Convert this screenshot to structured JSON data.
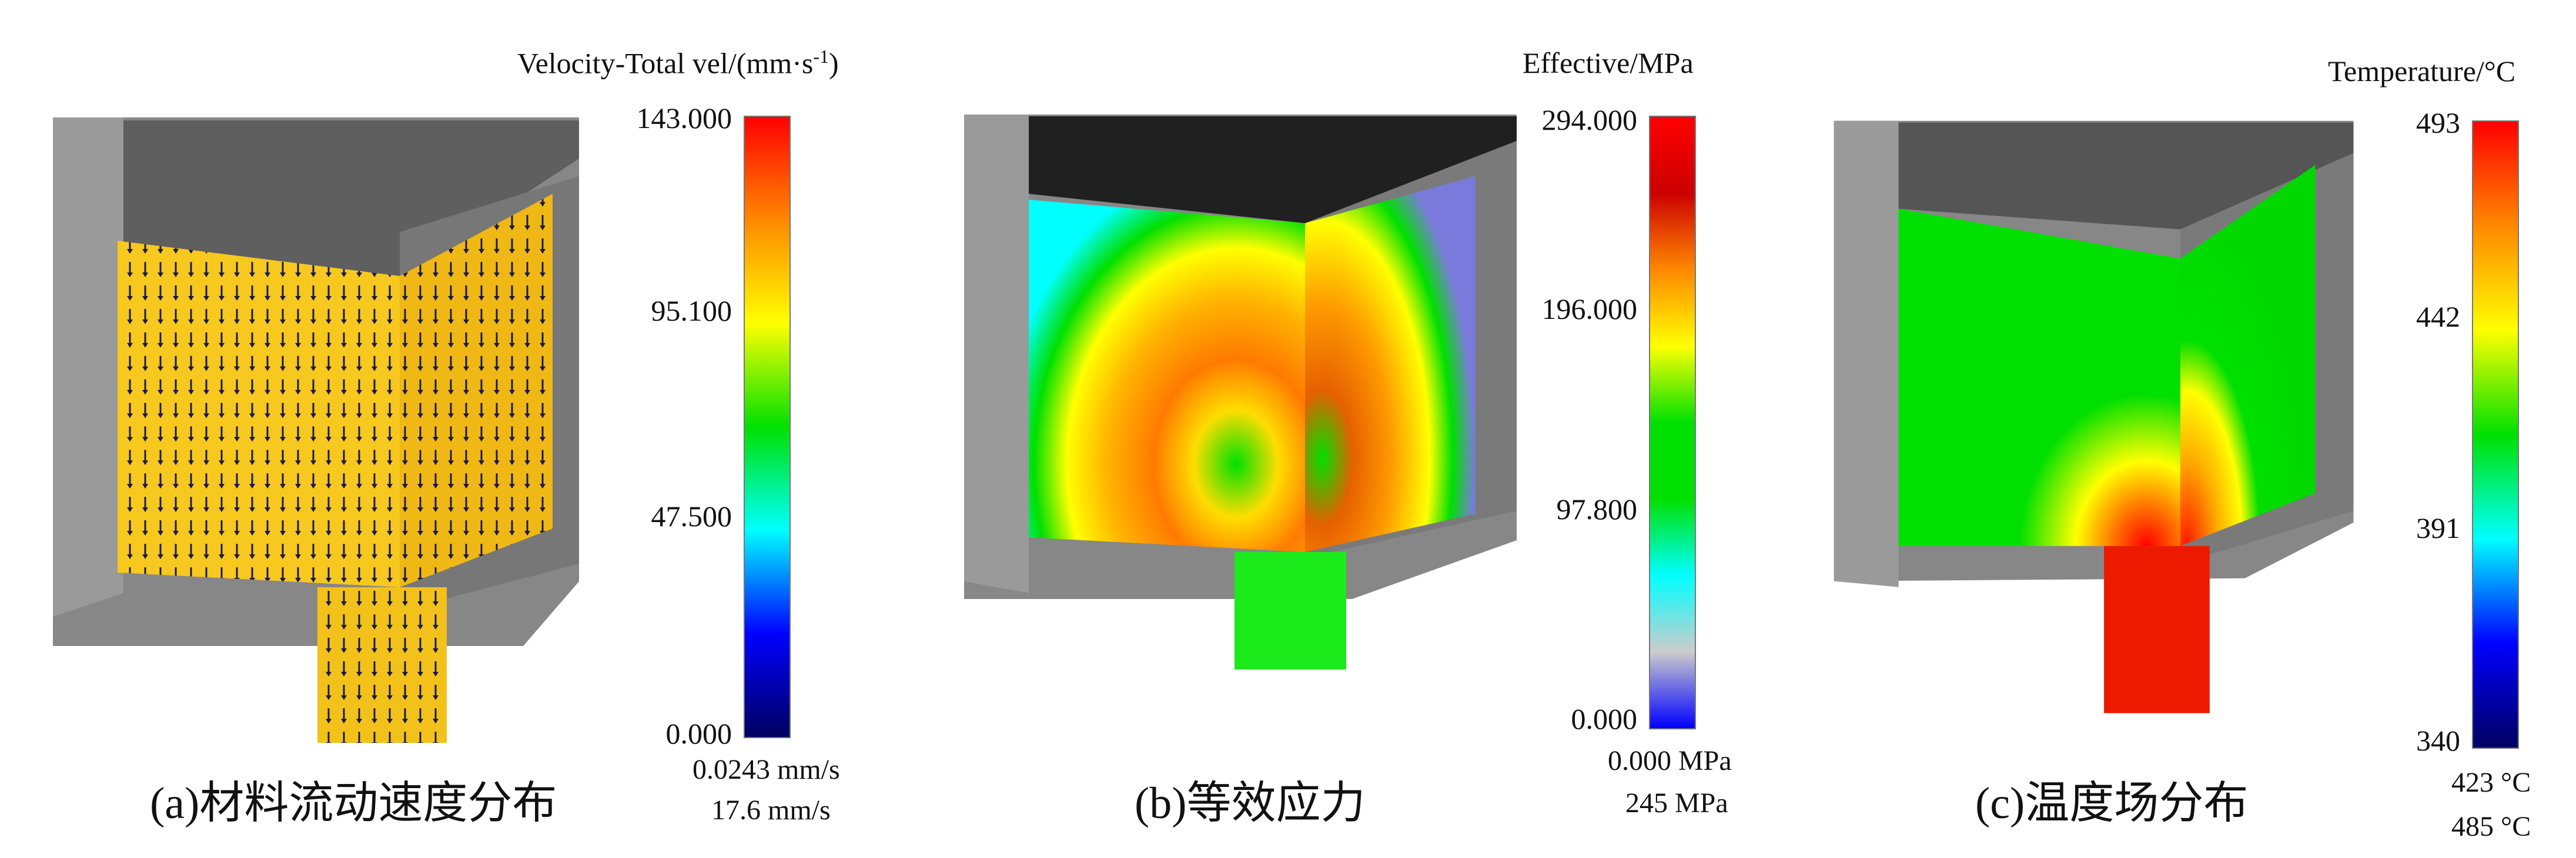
{
  "panels": {
    "a": {
      "legend_title": "Velocity-Total vel/(mm·s",
      "legend_title_sup": "-1",
      "legend_title_close": ")",
      "ticks": [
        "143.000",
        "95.100",
        "47.500",
        "0.000"
      ],
      "range": [
        "0.0243 mm/s",
        "17.6 mm/s"
      ],
      "caption": "(a)材料流动速度分布",
      "colormap": [
        "#ff0000",
        "#ff8800",
        "#ffff00",
        "#00e000",
        "#00ffff",
        "#0000ff",
        "#000060"
      ]
    },
    "b": {
      "legend_title": "Effective/MPa",
      "ticks": [
        "294.000",
        "196.000",
        "97.800",
        "0.000"
      ],
      "range": [
        "0.000 MPa",
        "245 MPa"
      ],
      "caption": "(b)等效应力",
      "colormap": [
        "#ff0000",
        "#cc0000",
        "#ff8800",
        "#ffff00",
        "#00e000",
        "#00e000",
        "#00ffff",
        "#cccccc",
        "#0000ff"
      ]
    },
    "c": {
      "legend_title": "Temperature/°C",
      "ticks": [
        "493",
        "442",
        "391",
        "340"
      ],
      "range": [
        "423 °C",
        "485 °C"
      ],
      "caption": "(c)温度场分布",
      "colormap": [
        "#ff0000",
        "#ff8800",
        "#ffff00",
        "#00e000",
        "#00ffff",
        "#0000ff",
        "#000060"
      ]
    }
  }
}
